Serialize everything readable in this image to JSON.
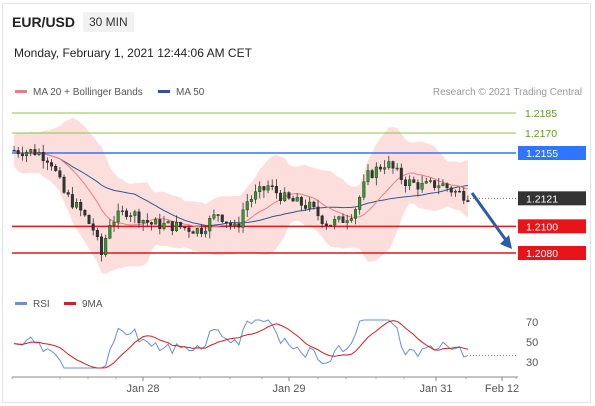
{
  "header": {
    "symbol": "EUR/USD",
    "timeframe": "30 MIN",
    "datetime": "Monday, February 1, 2021 12:44:06 AM CET"
  },
  "legend": {
    "ma20": "MA 20 + Bollinger Bands",
    "ma50": "MA 50",
    "copyright": "Research © 2021 Trading Central",
    "rsi": "RSI",
    "rsi_ma": "9MA"
  },
  "colors": {
    "ma20": "#e88080",
    "ma50": "#2f5597",
    "resistance_light": "#8dc63f",
    "pivot": "#2e75ff",
    "support": "#e8141a",
    "current": "#333333",
    "arrow": "#2a5caa",
    "rsi": "#6a8fd8",
    "rsi_ma": "#d02020"
  },
  "chart_data": {
    "type": "candlestick",
    "price_range": [
      1.2055,
      1.2205
    ],
    "levels": [
      {
        "value": 1.2185,
        "label": "1.2185",
        "style": "light-green-line"
      },
      {
        "value": 1.217,
        "label": "1.2170",
        "style": "light-green-line"
      },
      {
        "value": 1.2155,
        "label": "1.2155",
        "style": "blue-line-tag"
      },
      {
        "value": 1.2121,
        "label": "1.2121",
        "style": "current-price-tag"
      },
      {
        "value": 1.21,
        "label": "1.2100",
        "style": "red-line-tag"
      },
      {
        "value": 1.208,
        "label": "1.2080",
        "style": "red-line-tag"
      }
    ],
    "forecast_arrow": {
      "from": 1.2125,
      "to": 1.208
    },
    "x_ticks": [
      "Jan 28",
      "Jan 29",
      "Jan 31",
      "Feb 12"
    ],
    "rsi": {
      "range": [
        20,
        80
      ],
      "ticks": [
        "70",
        "50",
        "30"
      ]
    }
  }
}
